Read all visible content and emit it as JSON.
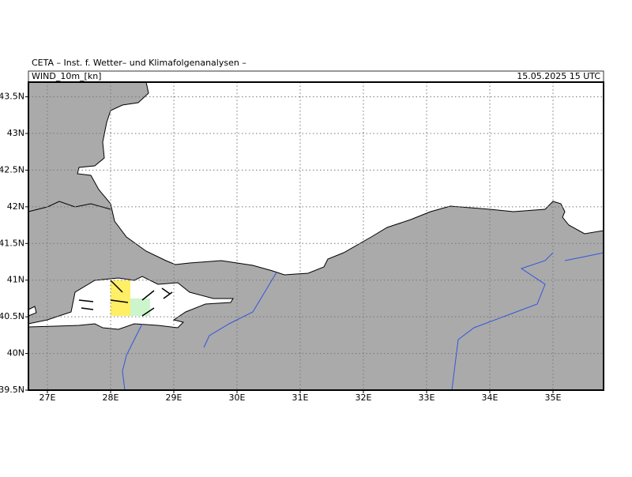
{
  "header": {
    "title": "CETA – Inst. f. Wetter– und Klimafolgenanalysen –",
    "field": "WIND_10m_[kn]",
    "valid": "15.05.2025 15 UTC"
  },
  "map": {
    "xlim": [
      26.7,
      35.8
    ],
    "ylim": [
      39.5,
      43.7
    ],
    "lat_ticks": [
      {
        "value": 43.5,
        "label": "43.5N"
      },
      {
        "value": 43,
        "label": "43N"
      },
      {
        "value": 42.5,
        "label": "42.5N"
      },
      {
        "value": 42,
        "label": "42N"
      },
      {
        "value": 41.5,
        "label": "41.5N"
      },
      {
        "value": 41,
        "label": "41N"
      },
      {
        "value": 40.5,
        "label": "40.5N"
      },
      {
        "value": 40,
        "label": "40N"
      },
      {
        "value": 39.5,
        "label": "39.5N"
      }
    ],
    "lon_ticks": [
      {
        "value": 27,
        "label": "27E"
      },
      {
        "value": 28,
        "label": "28E"
      },
      {
        "value": 29,
        "label": "29E"
      },
      {
        "value": 30,
        "label": "30E"
      },
      {
        "value": 31,
        "label": "31E"
      },
      {
        "value": 32,
        "label": "32E"
      },
      {
        "value": 33,
        "label": "33E"
      },
      {
        "value": 34,
        "label": "34E"
      },
      {
        "value": 35,
        "label": "35E"
      }
    ]
  }
}
